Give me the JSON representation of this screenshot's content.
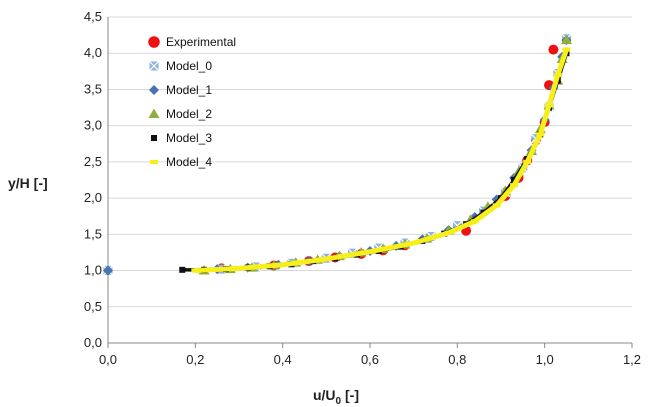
{
  "chart_data": {
    "type": "scatter",
    "xlabel": "u/U",
    "xlabel_sub": "0",
    "xlabel_suffix": " [-]",
    "ylabel": "y/H [-]",
    "xlim": [
      0,
      1.2
    ],
    "ylim": [
      0,
      4.5
    ],
    "x_ticks": [
      "0,0",
      "0,2",
      "0,4",
      "0,6",
      "0,8",
      "1,0",
      "1,2"
    ],
    "y_ticks": [
      "0,0",
      "0,5",
      "1,0",
      "1,5",
      "2,0",
      "2,5",
      "3,0",
      "3,5",
      "4,0",
      "4,5"
    ],
    "grid": "horizontal",
    "legend_position": "top-left",
    "series": [
      {
        "name": "Experimental",
        "marker": "circle",
        "color": "#ee1111",
        "points": [
          [
            0.26,
            1.03
          ],
          [
            0.38,
            1.07
          ],
          [
            0.46,
            1.13
          ],
          [
            0.52,
            1.18
          ],
          [
            0.58,
            1.23
          ],
          [
            0.63,
            1.28
          ],
          [
            0.68,
            1.35
          ],
          [
            0.82,
            1.55
          ],
          [
            0.91,
            2.03
          ],
          [
            0.94,
            2.28
          ],
          [
            0.96,
            2.52
          ],
          [
            0.98,
            2.8
          ],
          [
            1.0,
            3.05
          ],
          [
            1.01,
            3.56
          ],
          [
            1.02,
            4.05
          ]
        ]
      },
      {
        "name": "Model_0",
        "marker": "x-square",
        "color": "#8fb4dd",
        "points": [
          [
            0.0,
            1.0
          ],
          [
            0.26,
            1.02
          ],
          [
            0.34,
            1.05
          ],
          [
            0.42,
            1.1
          ],
          [
            0.5,
            1.17
          ],
          [
            0.56,
            1.24
          ],
          [
            0.62,
            1.31
          ],
          [
            0.68,
            1.38
          ],
          [
            0.74,
            1.47
          ],
          [
            0.8,
            1.62
          ],
          [
            0.86,
            1.82
          ],
          [
            0.91,
            2.08
          ],
          [
            0.95,
            2.42
          ],
          [
            0.98,
            2.82
          ],
          [
            1.01,
            3.26
          ],
          [
            1.03,
            3.72
          ],
          [
            1.05,
            4.2
          ]
        ]
      },
      {
        "name": "Model_1",
        "marker": "diamond",
        "color": "#4a72b0",
        "points": [
          [
            0.0,
            1.0
          ],
          [
            0.25,
            1.02
          ],
          [
            0.32,
            1.04
          ],
          [
            0.39,
            1.08
          ],
          [
            0.46,
            1.13
          ],
          [
            0.53,
            1.2
          ],
          [
            0.6,
            1.27
          ],
          [
            0.66,
            1.34
          ],
          [
            0.72,
            1.43
          ],
          [
            0.78,
            1.56
          ],
          [
            0.84,
            1.74
          ],
          [
            0.89,
            1.98
          ],
          [
            0.93,
            2.28
          ],
          [
            0.97,
            2.66
          ],
          [
            1.0,
            3.08
          ],
          [
            1.02,
            3.52
          ],
          [
            1.04,
            3.95
          ],
          [
            1.05,
            4.18
          ]
        ]
      },
      {
        "name": "Model_2",
        "marker": "triangle",
        "color": "#8fae3c",
        "points": [
          [
            0.22,
            1.0
          ],
          [
            0.28,
            1.02
          ],
          [
            0.33,
            1.04
          ],
          [
            0.38,
            1.07
          ],
          [
            0.43,
            1.11
          ],
          [
            0.48,
            1.15
          ],
          [
            0.53,
            1.2
          ],
          [
            0.58,
            1.25
          ],
          [
            0.63,
            1.3
          ],
          [
            0.68,
            1.36
          ],
          [
            0.73,
            1.44
          ],
          [
            0.78,
            1.55
          ],
          [
            0.83,
            1.7
          ],
          [
            0.87,
            1.88
          ],
          [
            0.91,
            2.1
          ],
          [
            0.94,
            2.36
          ],
          [
            0.97,
            2.65
          ],
          [
            0.99,
            2.95
          ],
          [
            1.01,
            3.28
          ],
          [
            1.03,
            3.62
          ],
          [
            1.04,
            3.92
          ],
          [
            1.05,
            4.18
          ]
        ]
      },
      {
        "name": "Model_3",
        "marker": "square",
        "color": "#111111",
        "points": [
          [
            0.17,
            1.01
          ],
          [
            0.22,
            1.01
          ],
          [
            0.27,
            1.02
          ],
          [
            0.32,
            1.04
          ],
          [
            0.37,
            1.06
          ],
          [
            0.42,
            1.09
          ],
          [
            0.47,
            1.13
          ],
          [
            0.52,
            1.17
          ],
          [
            0.57,
            1.22
          ],
          [
            0.62,
            1.27
          ],
          [
            0.67,
            1.33
          ],
          [
            0.72,
            1.41
          ],
          [
            0.77,
            1.51
          ],
          [
            0.82,
            1.64
          ],
          [
            0.86,
            1.8
          ],
          [
            0.9,
            2.0
          ],
          [
            0.93,
            2.25
          ],
          [
            0.96,
            2.54
          ],
          [
            0.99,
            2.88
          ],
          [
            1.01,
            3.25
          ],
          [
            1.03,
            3.62
          ],
          [
            1.05,
            4.0
          ]
        ]
      },
      {
        "name": "Model_4",
        "marker": "line",
        "color": "#f7ef1a",
        "points": [
          [
            0.2,
            1.0
          ],
          [
            0.3,
            1.03
          ],
          [
            0.4,
            1.08
          ],
          [
            0.5,
            1.16
          ],
          [
            0.6,
            1.26
          ],
          [
            0.7,
            1.38
          ],
          [
            0.78,
            1.52
          ],
          [
            0.84,
            1.68
          ],
          [
            0.89,
            1.9
          ],
          [
            0.93,
            2.18
          ],
          [
            0.96,
            2.5
          ],
          [
            0.99,
            2.88
          ],
          [
            1.01,
            3.28
          ],
          [
            1.03,
            3.7
          ],
          [
            1.05,
            4.05
          ]
        ]
      }
    ]
  }
}
